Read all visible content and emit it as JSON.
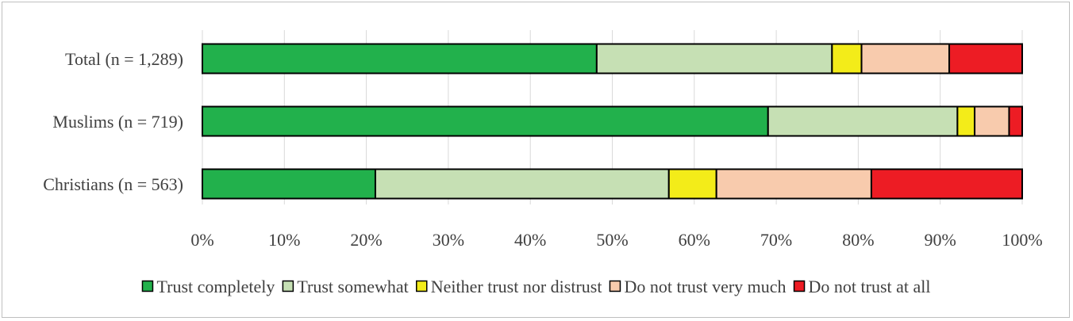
{
  "chart_data": {
    "type": "bar",
    "orientation": "horizontal",
    "stacked": true,
    "categories": [
      "Total (n = 1,289)",
      "Muslims (n = 719)",
      "Christians (n = 563)"
    ],
    "series": [
      {
        "name": "Trust completely",
        "color": "#22b14c",
        "values": [
          48.1,
          69.0,
          21.1
        ]
      },
      {
        "name": "Trust somewhat",
        "color": "#c6e0b4",
        "values": [
          28.7,
          23.1,
          35.8
        ]
      },
      {
        "name": "Neither trust nor distrust",
        "color": "#f3ec19",
        "values": [
          3.6,
          2.1,
          5.8
        ]
      },
      {
        "name": "Do not trust very much",
        "color": "#f8cbad",
        "values": [
          10.7,
          4.2,
          18.9
        ]
      },
      {
        "name": "Do not trust at all",
        "color": "#ed1c24",
        "values": [
          8.9,
          1.6,
          18.4
        ]
      }
    ],
    "xlim": [
      0,
      100
    ],
    "x_ticks": [
      "0%",
      "10%",
      "20%",
      "30%",
      "40%",
      "50%",
      "60%",
      "70%",
      "80%",
      "90%",
      "100%"
    ],
    "grid": true,
    "legend_position": "bottom",
    "title": "",
    "xlabel": "",
    "ylabel": ""
  }
}
